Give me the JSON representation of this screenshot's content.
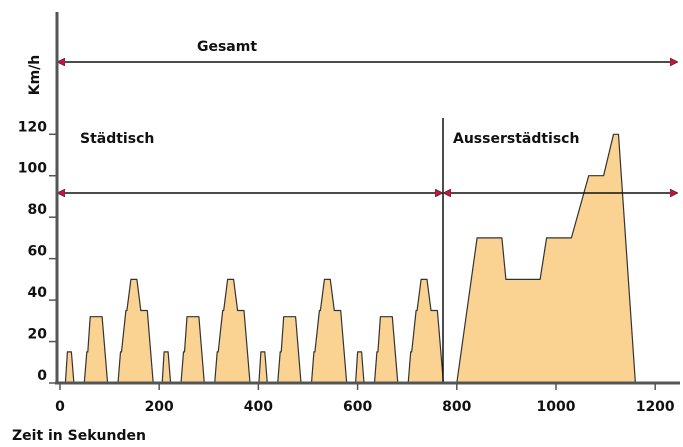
{
  "chart_data": {
    "type": "area",
    "title": "Gesamt",
    "region_labels": [
      "Städtisch",
      "Ausserstädtisch"
    ],
    "y_label": "Km/h",
    "x_label": "Zeit in Sekunden",
    "color": "#fad292",
    "x": [
      0,
      11,
      15,
      23,
      28,
      49,
      54,
      56,
      61,
      85,
      96,
      117,
      122,
      124,
      133,
      135,
      143,
      155,
      163,
      176,
      188,
      195,
      206,
      210,
      218,
      223,
      244,
      249,
      251,
      256,
      280,
      291,
      312,
      317,
      319,
      328,
      330,
      338,
      350,
      358,
      371,
      383,
      390,
      401,
      405,
      413,
      418,
      439,
      444,
      446,
      451,
      475,
      486,
      507,
      512,
      514,
      523,
      525,
      533,
      545,
      553,
      566,
      578,
      585,
      596,
      600,
      608,
      613,
      634,
      639,
      641,
      646,
      670,
      681,
      702,
      707,
      709,
      718,
      720,
      728,
      740,
      748,
      761,
      773,
      780,
      800,
      841,
      891,
      899,
      968,
      981,
      1031,
      1066,
      1096,
      1116,
      1126,
      1160,
      1180
    ],
    "values": [
      0,
      0,
      15,
      15,
      0,
      0,
      15,
      15,
      32,
      32,
      0,
      0,
      15,
      15,
      35,
      35,
      50,
      50,
      35,
      35,
      0,
      0,
      0,
      15,
      15,
      0,
      0,
      15,
      15,
      32,
      32,
      0,
      0,
      15,
      15,
      35,
      35,
      50,
      50,
      35,
      35,
      0,
      0,
      0,
      15,
      15,
      0,
      0,
      15,
      15,
      32,
      32,
      0,
      0,
      15,
      15,
      35,
      35,
      50,
      50,
      35,
      35,
      0,
      0,
      0,
      15,
      15,
      0,
      0,
      15,
      15,
      32,
      32,
      0,
      0,
      15,
      15,
      35,
      35,
      50,
      50,
      35,
      35,
      0,
      0,
      0,
      70,
      70,
      50,
      50,
      70,
      70,
      100,
      100,
      120,
      120,
      0,
      0
    ],
    "xlim": [
      -6,
      1250
    ],
    "ylim": [
      0,
      179
    ],
    "xticks": [
      0,
      200,
      400,
      600,
      800,
      1000,
      1200
    ],
    "yticks": [
      0,
      20,
      40,
      60,
      80,
      100,
      120
    ]
  }
}
